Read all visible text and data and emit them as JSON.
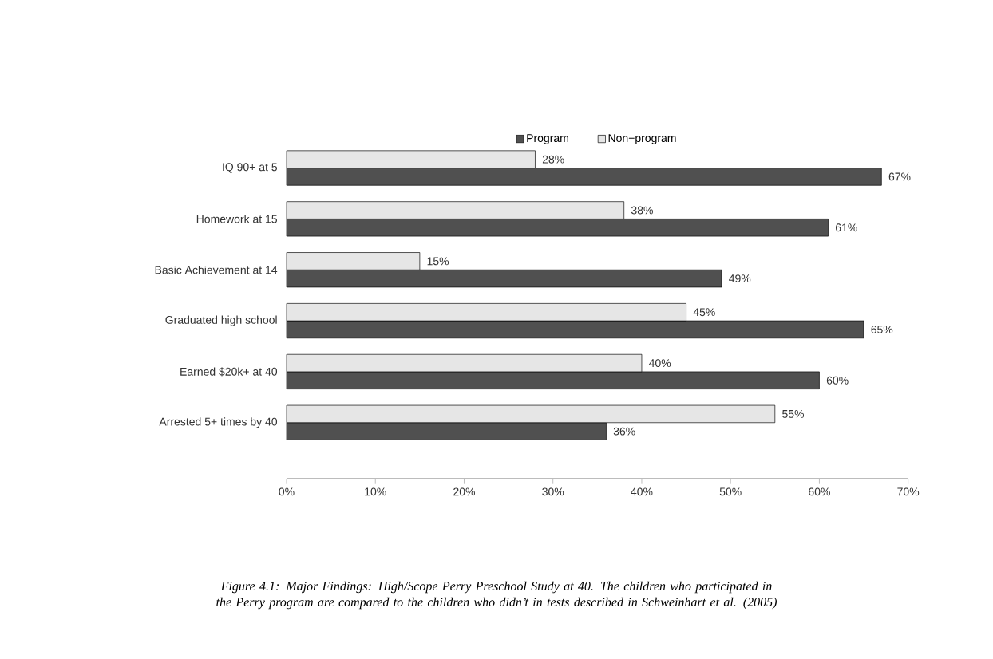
{
  "chart_data": {
    "type": "bar",
    "orientation": "horizontal",
    "categories": [
      "IQ 90+ at 5",
      "Homework at 15",
      "Basic Achievement at 14",
      "Graduated high school",
      "Earned $20k+ at 40",
      "Arrested 5+ times by 40"
    ],
    "series": [
      {
        "name": "Program",
        "color": "#505050",
        "values": [
          67,
          61,
          49,
          65,
          60,
          36
        ],
        "value_labels": [
          "67%",
          "61%",
          "49%",
          "65%",
          "60%",
          "36%"
        ]
      },
      {
        "name": "Non−program",
        "color": "#e6e6e6",
        "values": [
          28,
          38,
          15,
          45,
          40,
          55
        ],
        "value_labels": [
          "28%",
          "38%",
          "15%",
          "45%",
          "40%",
          "55%"
        ]
      }
    ],
    "xlim": [
      0,
      70
    ],
    "xticks": [
      {
        "value": 0,
        "label": "0%"
      },
      {
        "value": 10,
        "label": "10%"
      },
      {
        "value": 20,
        "label": "20%"
      },
      {
        "value": 30,
        "label": "30%"
      },
      {
        "value": 40,
        "label": "40%"
      },
      {
        "value": 50,
        "label": "50%"
      },
      {
        "value": 60,
        "label": "60%"
      },
      {
        "value": 70,
        "label": "70%"
      }
    ],
    "grid": false,
    "legend": "top",
    "annotations": [
      "*Figure 4.1: Major Findings: High/Scope Perry Preschool Study at 40. The children who participated in the Perry program are compared to the children who didn’t in tests described in Schweinhart* et al. *(2005)*"
    ]
  }
}
